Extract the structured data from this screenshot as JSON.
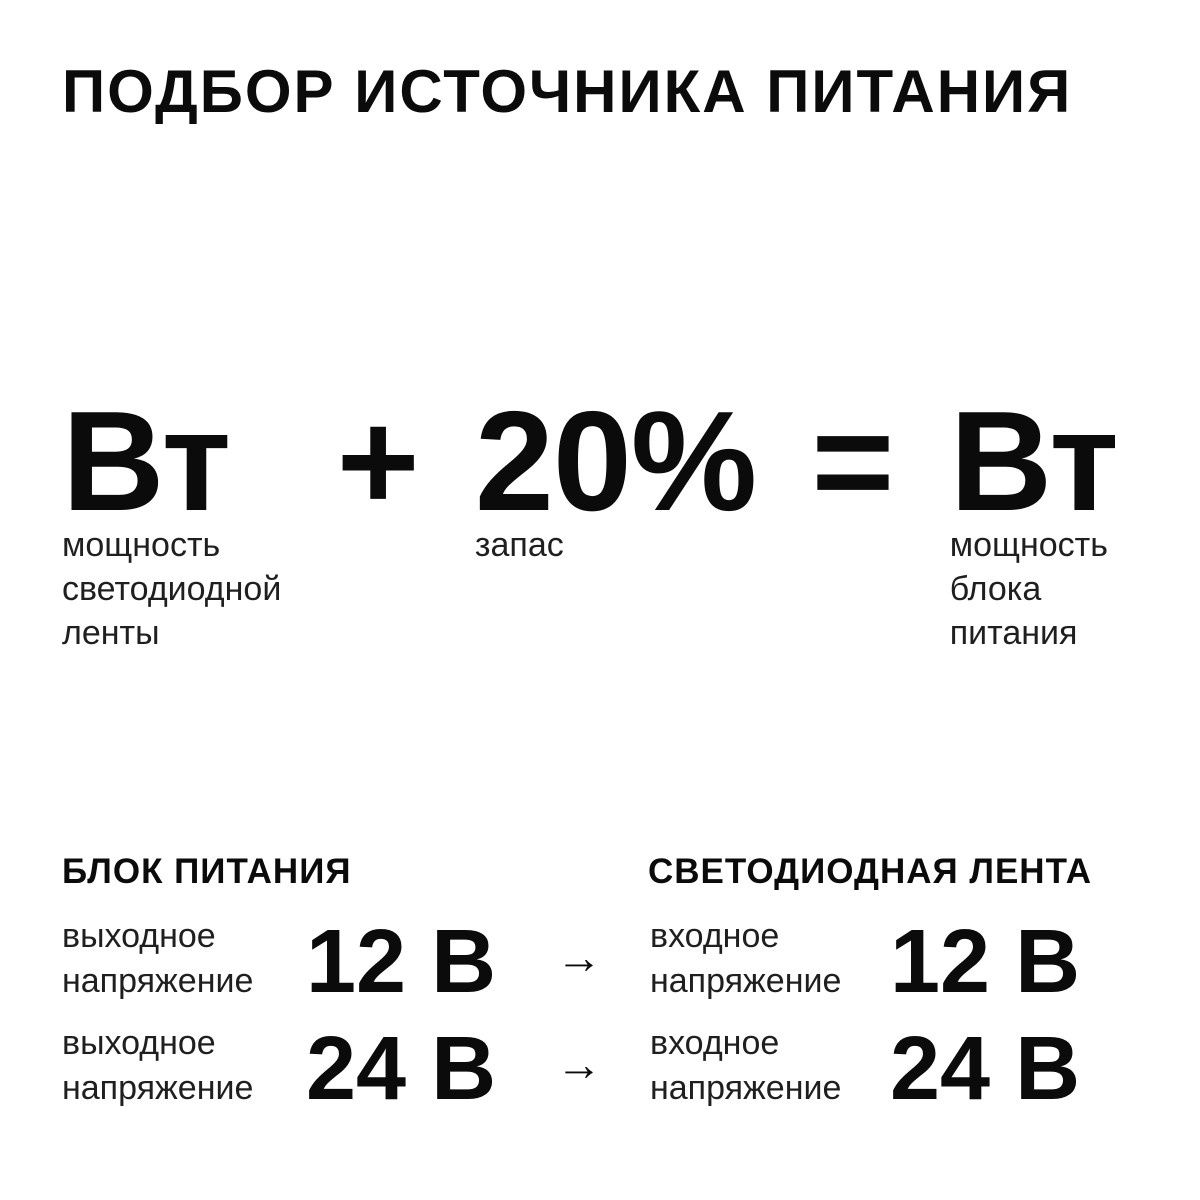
{
  "page": {
    "title": "ПОДБОР ИСТОЧНИКА ПИТАНИЯ",
    "background_color": "#ffffff",
    "text_color": "#0b0b0b"
  },
  "formula": {
    "terms": [
      {
        "value": "Вт",
        "label": "мощность\nсветодиодной\nленты"
      },
      {
        "value": "20%",
        "label": "запас"
      },
      {
        "value": "Вт",
        "label": "мощность\nблока\nпитания"
      }
    ],
    "operators": {
      "plus": "+",
      "equals": "="
    }
  },
  "comparison": {
    "left_header": "БЛОК ПИТАНИЯ",
    "right_header": "СВЕТОДИОДНАЯ ЛЕНТА",
    "arrow": "→",
    "rows": [
      {
        "left_label": "выходное\nнапряжение",
        "left_value": "12 В",
        "right_label": "входное\nнапряжение",
        "right_value": "12 В"
      },
      {
        "left_label": "выходное\nнапряжение",
        "left_value": "24 В",
        "right_label": "входное\nнапряжение",
        "right_value": "24 В"
      }
    ]
  }
}
